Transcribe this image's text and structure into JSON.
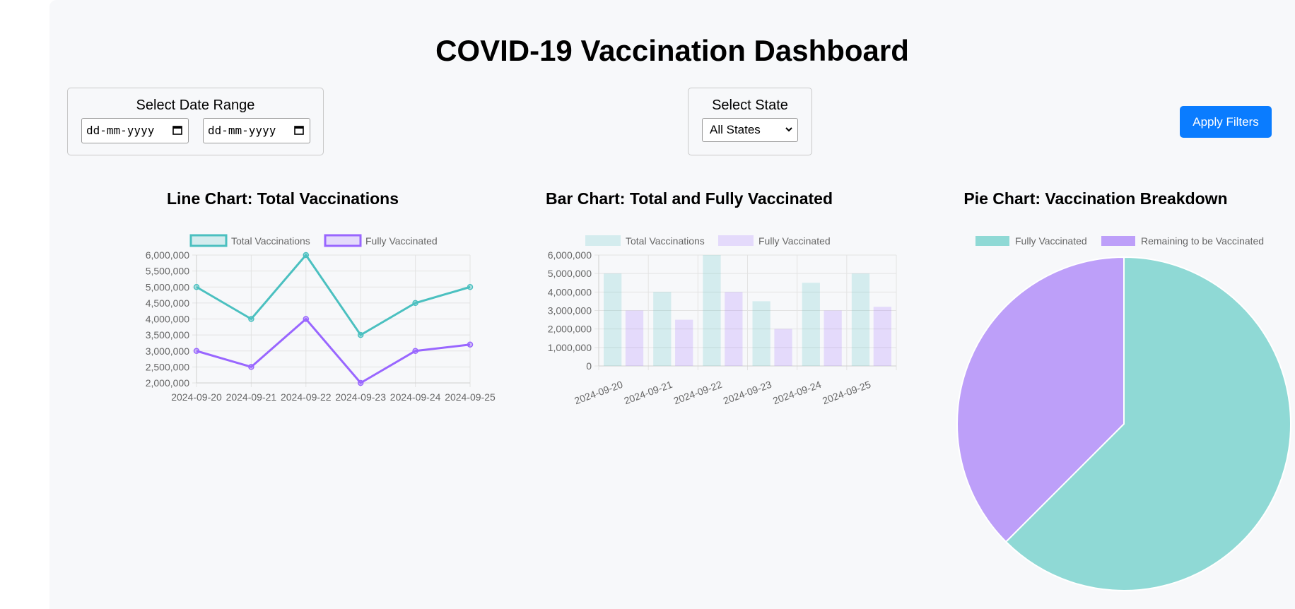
{
  "page": {
    "title": "COVID-19 Vaccination Dashboard"
  },
  "filters": {
    "date_range_label": "Select Date Range",
    "start_date_value": "dd-mm-yyyy",
    "end_date_value": "dd-mm-yyyy",
    "state_label": "Select State",
    "state_selected": "All States",
    "apply_button": "Apply Filters"
  },
  "colors": {
    "teal": "#4bc0c0",
    "purple": "#9966ff",
    "button": "#0a7cff"
  },
  "chart_data": [
    {
      "type": "line",
      "title": "Line Chart: Total Vaccinations",
      "categories": [
        "2024-09-20",
        "2024-09-21",
        "2024-09-22",
        "2024-09-23",
        "2024-09-24",
        "2024-09-25"
      ],
      "series": [
        {
          "name": "Total Vaccinations",
          "values": [
            5000000,
            4000000,
            6000000,
            3500000,
            4500000,
            5000000
          ]
        },
        {
          "name": "Fully Vaccinated",
          "values": [
            3000000,
            2500000,
            4000000,
            2000000,
            3000000,
            3200000
          ]
        }
      ],
      "y_ticks": [
        "6,000,000",
        "5,500,000",
        "5,000,000",
        "4,500,000",
        "4,000,000",
        "3,500,000",
        "3,000,000",
        "2,500,000",
        "2,000,000"
      ],
      "ylim": [
        2000000,
        6000000
      ],
      "grid": true,
      "legend": "top"
    },
    {
      "type": "bar",
      "title": "Bar Chart: Total and Fully Vaccinated",
      "categories": [
        "2024-09-20",
        "2024-09-21",
        "2024-09-22",
        "2024-09-23",
        "2024-09-24",
        "2024-09-25"
      ],
      "series": [
        {
          "name": "Total Vaccinations",
          "values": [
            5000000,
            4000000,
            6000000,
            3500000,
            4500000,
            5000000
          ]
        },
        {
          "name": "Fully Vaccinated",
          "values": [
            3000000,
            2500000,
            4000000,
            2000000,
            3000000,
            3200000
          ]
        }
      ],
      "y_ticks": [
        "6,000,000",
        "5,000,000",
        "4,000,000",
        "3,000,000",
        "2,000,000",
        "1,000,000",
        "0"
      ],
      "ylim": [
        0,
        6000000
      ],
      "grid": true,
      "legend": "top"
    },
    {
      "type": "pie",
      "title": "Pie Chart: Vaccination Breakdown",
      "slices": [
        {
          "name": "Fully Vaccinated",
          "value": 62.5
        },
        {
          "name": "Remaining to be Vaccinated",
          "value": 37.5
        }
      ],
      "legend": "top"
    }
  ]
}
